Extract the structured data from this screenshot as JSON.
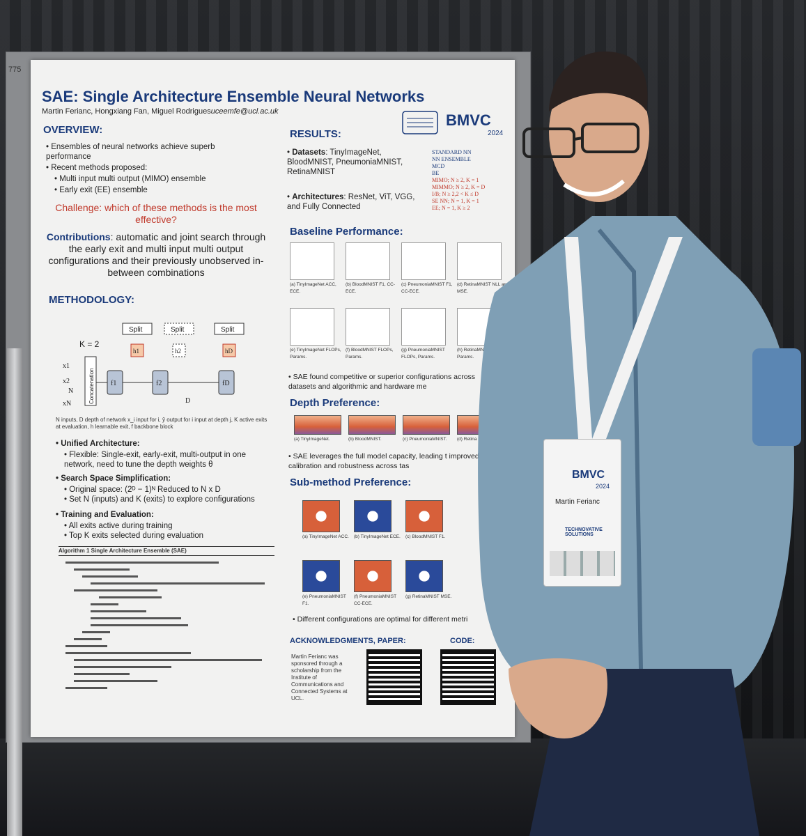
{
  "board_number": "775",
  "poster": {
    "title": "SAE: Single Architecture Ensemble Neural Networks",
    "authors": "Martin Ferianc, Hongxiang Fan, Miguel Rodrigues",
    "email": "uceemfe@ucl.ac.uk",
    "logo_text": "BMVC",
    "logo_year": "2024",
    "overview": {
      "heading": "OVERVIEW:",
      "bullets": [
        "Ensembles of neural networks achieve superb performance",
        "Recent methods proposed:",
        "Multi input multi output (MIMO) ensemble",
        "Early exit (EE) ensemble"
      ],
      "challenge_label": "Challenge",
      "challenge_text": ": which of these methods is the most effective?",
      "contributions_label": "Contributions",
      "contributions_text": ": automatic and joint search through the early exit and multi input multi output configurations and their previously unobserved in-between combinations"
    },
    "methodology": {
      "heading": "METHODOLOGY:",
      "diagram": {
        "k_label": "K = 2",
        "concat_label": "Concatenation",
        "split_label": "Split",
        "depth_label": "D",
        "inputs": [
          "x1",
          "x2",
          "N",
          "xN"
        ],
        "blocks": [
          "f1",
          "f2",
          "fD"
        ],
        "heads": [
          "h1",
          "h2",
          "hD"
        ]
      },
      "diagram_caption": "N inputs, D depth of network x_i input for i, ŷ output for i input at depth j, K active exits at evaluation, h learnable exit, f backbone block",
      "unified_heading": "Unified Architecture:",
      "unified_text": "Flexible: Single-exit, early-exit, multi-output in one network, need to tune the depth weights θ",
      "search_heading": "Search Space Simplification:",
      "search_items": [
        "Original space: (2ᴰ − 1)ᴺ Reduced to N x D",
        "Set N (inputs) and K (exits) to explore configurations"
      ],
      "train_heading": "Training and Evaluation:",
      "train_items": [
        "All exits active during training",
        "Top K exits selected during evaluation"
      ],
      "algorithm_title": "Algorithm 1 Single Architecture Ensemble (SAE)"
    },
    "results": {
      "heading": "RESULTS:",
      "datasets_label": "Datasets",
      "datasets_text": ": TinyImageNet, BloodMNIST, PneumoniaMNIST, RetinaMNIST",
      "arch_label": "Architectures",
      "arch_text": ": ResNet, ViT, VGG, and Fully Connected",
      "legend": [
        "STANDARD NN",
        "NN ENSEMBLE",
        "MCD",
        "BE",
        "MIMO; N ≥ 2, K = 1",
        "MIMMO; N ≥ 2, K = D",
        "I/B; N ≥ 2,2 < K ≤ D",
        "SE NN; N = 1, K = 1",
        "EE; N = 1, K ≥ 2"
      ],
      "baseline_heading": "Baseline Performance:",
      "baseline_captions": [
        "(a) TinyImageNet ACC, ECE.",
        "(b) BloodMNIST F1, CC-ECE.",
        "(c) PneumoniaMNIST F1, CC-ECE.",
        "(d) RetinaMNIST NLL and MSE.",
        "(e) TinyImageNet FLOPs, Params.",
        "(f) BloodMNIST FLOPs, Params.",
        "(g) PneumoniaMNIST FLOPs, Params.",
        "(h) RetinaMNIST FLOPs, Params."
      ],
      "baseline_note": "SAE found competitive or superior configurations across datasets and algorithmic and hardware me",
      "depth_heading": "Depth Preference:",
      "depth_captions": [
        "(a) TinyImageNet.",
        "(b) BloodMNIST.",
        "(c) PneumoniaMNIST.",
        "(d) Retina"
      ],
      "depth_note": "SAE leverages the full model capacity, leading t improved calibration and robustness across tas",
      "sub_heading": "Sub-method Preference:",
      "sub_captions": [
        "(a) TinyImageNet ACC.",
        "(b) TinyImageNet ECE.",
        "(c) BloodMNIST F1.",
        "(e) PneumoniaMNIST F1.",
        "(f) PneumoniaMNIST CC-ECE.",
        "(g) RetinaMNIST MSE."
      ],
      "sub_note": "Different configurations are optimal for different metri"
    },
    "ack": {
      "heading": "ACKNOWLEDGMENTS, PAPER:",
      "text": "Martin Ferianc was sponsored through a scholarship from the Institute of Communications and Connected Systems at UCL.",
      "code_heading": "CODE:"
    }
  },
  "badge": {
    "logo_text": "BMVC",
    "year": "2024",
    "name": "Martin Ferianc",
    "sponsor": "TECHNOVATIVE SOLUTIONS",
    "lanyard_text": "BMVC"
  },
  "colors": {
    "poster_title": "#1a3a7a",
    "challenge": "#c0392b",
    "sweater": "#7f9fb5"
  }
}
